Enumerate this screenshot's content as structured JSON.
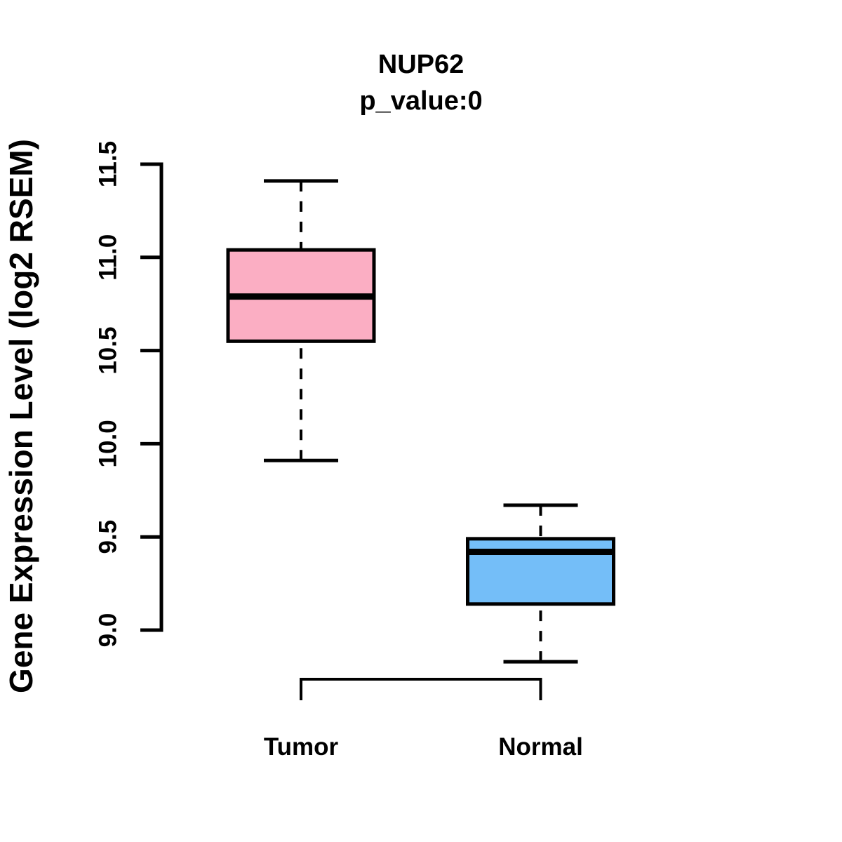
{
  "chart_data": {
    "type": "boxplot",
    "title": "NUP62",
    "subtitle": "p_value:0",
    "ylabel": "Gene Expression Level (log2 RSEM)",
    "xlabel": "",
    "ylim": [
      9.0,
      11.5
    ],
    "yticks": [
      9.0,
      9.5,
      10.0,
      10.5,
      11.0,
      11.5
    ],
    "ytick_labels": [
      "9.0",
      "9.5",
      "10.0",
      "10.5",
      "11.0",
      "11.5"
    ],
    "categories": [
      "Tumor",
      "Normal"
    ],
    "series": [
      {
        "name": "Tumor",
        "fill_color": "#FBAEC3",
        "whisker_low": 9.91,
        "q1": 10.55,
        "median": 10.79,
        "q3": 11.04,
        "whisker_high": 11.41
      },
      {
        "name": "Normal",
        "fill_color": "#74BEF8",
        "whisker_low": 8.83,
        "q1": 9.14,
        "median": 9.42,
        "q3": 9.49,
        "whisker_high": 9.67
      }
    ],
    "stroke_color": "#000000",
    "background_color": "#FFFFFF",
    "grid": false,
    "legend": null,
    "comparison_bracket": {
      "from": "Tumor",
      "to": "Normal"
    }
  }
}
